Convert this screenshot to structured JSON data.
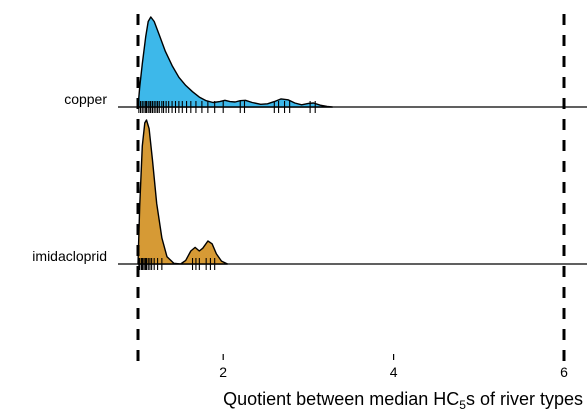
{
  "chart_data": {
    "type": "ridgeline",
    "xlabel": {
      "pre": "Quotient between median HC",
      "sub": "5",
      "post": "s of river types"
    },
    "xticks": [
      2,
      4,
      6
    ],
    "xlim": [
      0.8,
      6.25
    ],
    "reference_lines": [
      1,
      6
    ],
    "series": [
      {
        "name": "copper",
        "color": "#3db8ea",
        "density_scale": 1.0,
        "density": [
          [
            1.0,
            0.0
          ],
          [
            1.02,
            0.22
          ],
          [
            1.05,
            0.48
          ],
          [
            1.09,
            0.78
          ],
          [
            1.12,
            0.95
          ],
          [
            1.15,
            1.0
          ],
          [
            1.19,
            0.95
          ],
          [
            1.25,
            0.8
          ],
          [
            1.32,
            0.62
          ],
          [
            1.4,
            0.46
          ],
          [
            1.48,
            0.33
          ],
          [
            1.56,
            0.24
          ],
          [
            1.64,
            0.17
          ],
          [
            1.72,
            0.11
          ],
          [
            1.8,
            0.07
          ],
          [
            1.88,
            0.05
          ],
          [
            1.96,
            0.06
          ],
          [
            2.02,
            0.075
          ],
          [
            2.08,
            0.06
          ],
          [
            2.14,
            0.055
          ],
          [
            2.2,
            0.07
          ],
          [
            2.26,
            0.075
          ],
          [
            2.34,
            0.05
          ],
          [
            2.44,
            0.03
          ],
          [
            2.52,
            0.035
          ],
          [
            2.6,
            0.06
          ],
          [
            2.68,
            0.09
          ],
          [
            2.76,
            0.08
          ],
          [
            2.84,
            0.045
          ],
          [
            2.92,
            0.025
          ],
          [
            3.0,
            0.04
          ],
          [
            3.06,
            0.045
          ],
          [
            3.14,
            0.02
          ],
          [
            3.22,
            0.005
          ],
          [
            3.28,
            0.0
          ]
        ],
        "rug": [
          1.01,
          1.03,
          1.05,
          1.07,
          1.09,
          1.1,
          1.12,
          1.14,
          1.15,
          1.17,
          1.19,
          1.21,
          1.23,
          1.25,
          1.28,
          1.3,
          1.33,
          1.36,
          1.4,
          1.44,
          1.48,
          1.52,
          1.57,
          1.62,
          1.68,
          1.75,
          1.82,
          1.9,
          2.0,
          2.2,
          2.25,
          2.6,
          2.65,
          2.72,
          2.78,
          3.02,
          3.08
        ]
      },
      {
        "name": "imidacloprid",
        "color": "#d69a35",
        "density_scale": 1.6,
        "density": [
          [
            1.0,
            0.0
          ],
          [
            1.02,
            0.4
          ],
          [
            1.05,
            0.82
          ],
          [
            1.08,
            0.98
          ],
          [
            1.1,
            1.0
          ],
          [
            1.13,
            0.94
          ],
          [
            1.17,
            0.72
          ],
          [
            1.22,
            0.42
          ],
          [
            1.28,
            0.18
          ],
          [
            1.34,
            0.05
          ],
          [
            1.42,
            0.005
          ],
          [
            1.5,
            0.0
          ],
          [
            1.56,
            0.025
          ],
          [
            1.62,
            0.09
          ],
          [
            1.67,
            0.115
          ],
          [
            1.72,
            0.09
          ],
          [
            1.76,
            0.11
          ],
          [
            1.82,
            0.16
          ],
          [
            1.87,
            0.14
          ],
          [
            1.92,
            0.07
          ],
          [
            1.98,
            0.02
          ],
          [
            2.05,
            0.0
          ]
        ],
        "rug": [
          1.01,
          1.02,
          1.04,
          1.05,
          1.06,
          1.08,
          1.09,
          1.1,
          1.12,
          1.14,
          1.16,
          1.19,
          1.23,
          1.28,
          1.64,
          1.68,
          1.72,
          1.8,
          1.85,
          1.9
        ]
      }
    ]
  }
}
